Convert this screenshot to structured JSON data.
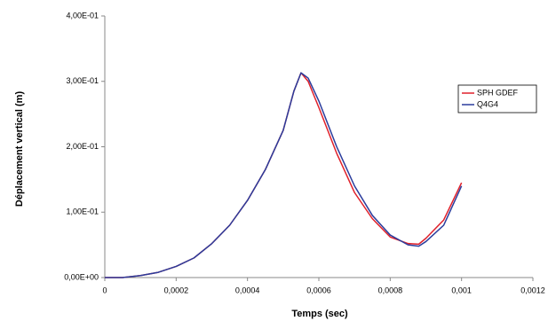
{
  "chart_data": {
    "type": "line",
    "xlabel": "Temps (sec)",
    "ylabel": "Déplacement vertical (m)",
    "xlim": [
      0,
      0.0012
    ],
    "xticks": [
      0,
      {
        "value": 0.0002,
        "label": "0,0002"
      },
      {
        "value": 0.0004,
        "label": "0,0004"
      },
      {
        "value": 0.0006,
        "label": "0,0006"
      },
      {
        "value": 0.0008,
        "label": "0,0008"
      },
      {
        "value": 0.001,
        "label": "0,001"
      },
      {
        "value": 0.0012,
        "label": "0,0012"
      }
    ],
    "ylim": [
      0,
      0.4
    ],
    "yticks": [
      {
        "value": 0,
        "label": "0,00E+00"
      },
      {
        "value": 0.1,
        "label": "1,00E-01"
      },
      {
        "value": 0.2,
        "label": "2,00E-01"
      },
      {
        "value": 0.3,
        "label": "3,00E-01"
      },
      {
        "value": 0.4,
        "label": "4,00E-01"
      }
    ],
    "grid": false,
    "legend": "right",
    "x": [
      0,
      5e-05,
      0.0001,
      0.00015,
      0.0002,
      0.00025,
      0.0003,
      0.00035,
      0.0004,
      0.00045,
      0.0005,
      0.00053,
      0.00055,
      0.00057,
      0.0006,
      0.00065,
      0.0007,
      0.00075,
      0.0008,
      0.00085,
      0.00088,
      0.0009,
      0.00095,
      0.001
    ],
    "series": [
      {
        "name": "SPH GDEF",
        "color": "#e0202a",
        "values": [
          0,
          0,
          0.003,
          0.008,
          0.017,
          0.03,
          0.052,
          0.08,
          0.118,
          0.165,
          0.225,
          0.285,
          0.313,
          0.3,
          0.26,
          0.19,
          0.13,
          0.09,
          0.062,
          0.052,
          0.051,
          0.06,
          0.088,
          0.145
        ]
      },
      {
        "name": "Q4G4",
        "color": "#2a3c9c",
        "values": [
          0,
          0,
          0.003,
          0.008,
          0.017,
          0.03,
          0.052,
          0.08,
          0.118,
          0.165,
          0.225,
          0.285,
          0.313,
          0.305,
          0.27,
          0.2,
          0.14,
          0.095,
          0.065,
          0.05,
          0.048,
          0.055,
          0.08,
          0.14
        ]
      }
    ]
  }
}
